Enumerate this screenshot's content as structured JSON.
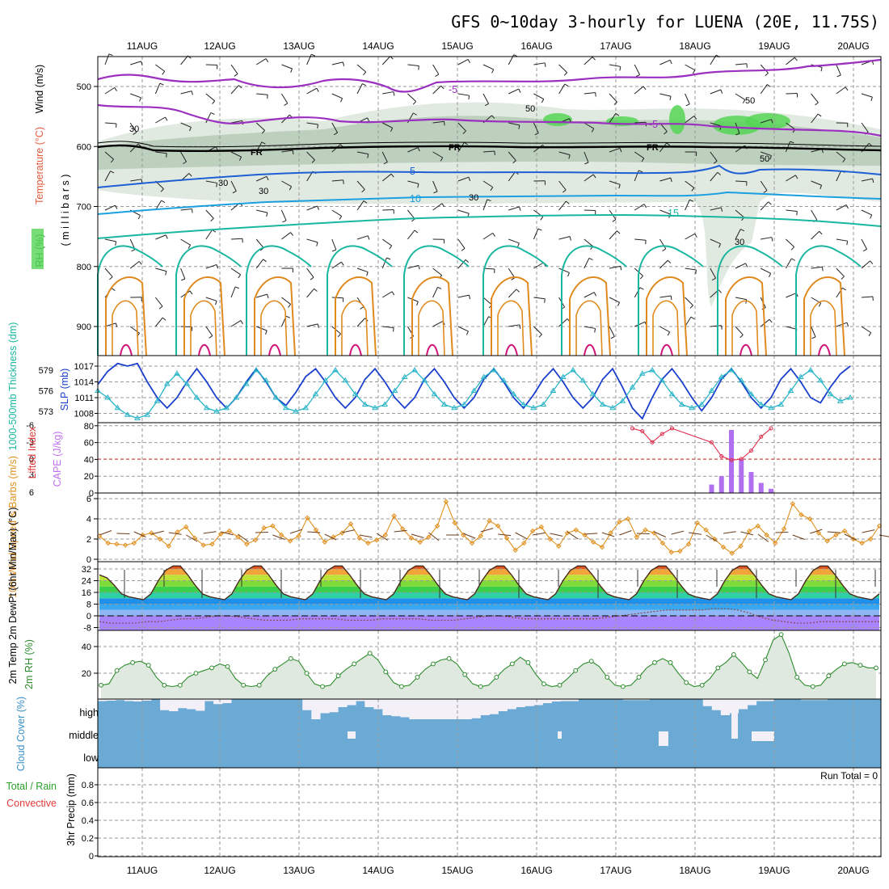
{
  "title": "GFS 0~10day 3-hourly for LUENA (20E, 11.75S)",
  "dates": [
    "11AUG",
    "12AUG",
    "13AUG",
    "14AUG",
    "15AUG",
    "16AUG",
    "17AUG",
    "18AUG",
    "19AUG",
    "20AUG"
  ],
  "run_total_label": "Run Total = 0",
  "colors": {
    "purple": "#9b2fbf",
    "blue": "#1f5fd6",
    "sky": "#1a9fe0",
    "teal": "#19b7a0",
    "orange": "#e08a1e",
    "magenta": "#d0157a",
    "green": "#55d655",
    "rh_fill": "#c9d8c9",
    "cloud": "#6aaad4",
    "cloud_clear": "#f4f0f8"
  },
  "chart_data": [
    {
      "type": "heatmap",
      "panel": "upper-air",
      "ylabel_parts": [
        "RH (%)",
        "Temperature (°C)",
        "Wind (m/s)"
      ],
      "ylabel_units": "( m i l l i b a r s )",
      "yticks": [
        500,
        600,
        700,
        800,
        900
      ],
      "contour_labels": {
        "temperature": [
          "-5",
          "-5",
          "5",
          "10",
          "15"
        ],
        "rh": [
          "50",
          "50",
          "30",
          "30",
          "30",
          "30",
          "30",
          "50"
        ],
        "freezing": [
          "FR",
          "FR",
          "FR"
        ]
      },
      "freezing_level_mb": 600,
      "temperature_isotherms_mb": [
        {
          "label": "-5",
          "mb": 555
        },
        {
          "label": "5",
          "mb": 640
        },
        {
          "label": "10",
          "mb": 680
        },
        {
          "label": "15",
          "mb": 720
        }
      ],
      "grid": true
    },
    {
      "type": "line",
      "panel": "thickness-slp",
      "ylabel_left": "1000-500mb Thickness (dm)",
      "ylabel_right": "SLP (mb)",
      "yticks_left": [
        573,
        576,
        579
      ],
      "yticks_right": [
        1008,
        1011,
        1014,
        1017
      ],
      "series": [
        {
          "name": "SLP (mb)",
          "values": [
            1013.5,
            1016,
            1017.5,
            1017,
            1017.5,
            1014,
            1011,
            1009,
            1011,
            1014,
            1016.5,
            1014,
            1011,
            1009,
            1011,
            1014,
            1016.5,
            1014,
            1011,
            1009.5,
            1012,
            1015,
            1016.5,
            1014,
            1011,
            1009,
            1011,
            1014.5,
            1016.5,
            1014,
            1011,
            1009,
            1011,
            1014.5,
            1016.5,
            1014,
            1011,
            1009,
            1011,
            1014.5,
            1016.5,
            1014,
            1011,
            1009,
            1011.5,
            1014.5,
            1016.5,
            1014,
            1011,
            1009,
            1011,
            1014.5,
            1016.5,
            1013,
            1009,
            1007,
            1011,
            1014.5,
            1016.5,
            1014,
            1011,
            1008.5,
            1011,
            1014.5,
            1016.5,
            1014,
            1011,
            1009,
            1011,
            1014.5,
            1016.5,
            1014,
            1011,
            1010,
            1013,
            1015.5,
            1017
          ]
        },
        {
          "name": "1000-500mb Thickness (dm)",
          "values": [
            576,
            575,
            573.5,
            572.5,
            572,
            572.5,
            574.5,
            577,
            578.5,
            577,
            575,
            573.5,
            573,
            573.5,
            575,
            577,
            579,
            577.5,
            575,
            573.5,
            573,
            573.5,
            575.5,
            577.5,
            579,
            577.5,
            575.5,
            574,
            573.5,
            574,
            576,
            578,
            579,
            577.5,
            575.5,
            574,
            573.5,
            574,
            576,
            578,
            579,
            577.5,
            575.5,
            574,
            573.5,
            574,
            576,
            578,
            579,
            577.5,
            575.5,
            574,
            573.5,
            574.5,
            576.5,
            578.5,
            579,
            577.5,
            575.5,
            574,
            573.5,
            574,
            576,
            578,
            579,
            577.5,
            575.5,
            574,
            573.5,
            574,
            576,
            578,
            579,
            577.5,
            575.5,
            574.5,
            575
          ]
        }
      ],
      "grid": true
    },
    {
      "type": "bar",
      "panel": "cape-li",
      "ylabel_left": "Lifted Index",
      "ylabel_right": "CAPE (J/kg)",
      "yticks_left": [
        "-6",
        "-3",
        "0",
        "3",
        "6"
      ],
      "yticks_right": [
        0,
        20,
        40,
        60,
        80
      ],
      "series": [
        {
          "name": "CAPE (J/kg)",
          "points": [
            [
              62,
              10
            ],
            [
              63,
              20
            ],
            [
              64,
              75
            ],
            [
              65,
              40
            ],
            [
              66,
              25
            ],
            [
              67,
              12
            ],
            [
              68,
              5
            ]
          ]
        },
        {
          "name": "Lifted Index",
          "points": [
            [
              54,
              5.5
            ],
            [
              55,
              5
            ],
            [
              56,
              3
            ],
            [
              57,
              4.5
            ],
            [
              58,
              5.5
            ],
            [
              62,
              3
            ],
            [
              63,
              0.5
            ],
            [
              64,
              -0.2
            ],
            [
              65,
              0
            ],
            [
              66,
              1.5
            ],
            [
              67,
              4
            ],
            [
              68,
              5.5
            ]
          ]
        }
      ],
      "grid": true
    },
    {
      "type": "line",
      "panel": "wind10m",
      "ylabel": "10m Wind Speed & Barbs (m/s)",
      "yticks": [
        0,
        2,
        4,
        6
      ],
      "series": [
        {
          "name": "10m Wind Speed",
          "values": [
            2.3,
            1.6,
            1.5,
            1.4,
            1.6,
            2.4,
            2.6,
            2.0,
            1.3,
            2.7,
            3.2,
            2.1,
            1.4,
            1.5,
            2.5,
            2.8,
            2.2,
            1.5,
            1.9,
            3.1,
            3.3,
            2.4,
            1.8,
            2.3,
            4.1,
            2.9,
            1.7,
            2.2,
            2.6,
            3.5,
            2.1,
            1.6,
            1.9,
            2.4,
            4.3,
            3.0,
            2.1,
            1.7,
            2.2,
            3.3,
            5.7,
            3.6,
            2.4,
            1.6,
            2.3,
            3.8,
            3.3,
            2.1,
            0.9,
            1.6,
            2.8,
            3.2,
            2.0,
            1.3,
            2.6,
            2.9,
            2.4,
            1.7,
            1.2,
            2.6,
            3.7,
            4.0,
            2.2,
            2.9,
            2.6,
            1.6,
            0.7,
            0.8,
            1.5,
            3.6,
            2.9,
            2.0,
            1.2,
            0.6,
            1.3,
            2.8,
            3.3,
            2.4,
            1.6,
            3.0,
            5.5,
            4.4,
            4.0,
            2.6,
            1.8,
            2.4,
            2.8,
            2.0,
            1.6,
            2.0,
            3.3
          ]
        }
      ],
      "grid": true
    },
    {
      "type": "area",
      "panel": "temperature",
      "ylabel": "2m Temp 2m DewPt (6hr Min/Max) (°C)",
      "yticks": [
        -8,
        0,
        8,
        16,
        24,
        32
      ],
      "series": [
        {
          "name": "2m Temp",
          "values": [
            28,
            26,
            21,
            15,
            13,
            12,
            11,
            15,
            24,
            31,
            34,
            34,
            28,
            21,
            15,
            13,
            12,
            11,
            15,
            24,
            31,
            34,
            34,
            28,
            21,
            15,
            13,
            12,
            11,
            15,
            24,
            31,
            34,
            34,
            28,
            21,
            15,
            13,
            12,
            11,
            15,
            24,
            31,
            34,
            34,
            28,
            21,
            15,
            13,
            12,
            11,
            15,
            24,
            31,
            34,
            34,
            28,
            21,
            15,
            13,
            12,
            11,
            15,
            24,
            31,
            34,
            34,
            28,
            21,
            15,
            13,
            12,
            11,
            15,
            24,
            31,
            34,
            34,
            28,
            21,
            15,
            13,
            12,
            11,
            15,
            24,
            31,
            34,
            34,
            28,
            21,
            15,
            13,
            12,
            11,
            15,
            24,
            31,
            34,
            34,
            28,
            21,
            15,
            13,
            12,
            11,
            15
          ]
        },
        {
          "name": "2m DewPt",
          "values": [
            -4,
            -5,
            -5,
            -5,
            -4,
            -4,
            -3,
            -2,
            -2,
            -1,
            0,
            0,
            -1,
            -2,
            -3,
            -3,
            -3,
            -2,
            -2,
            -2,
            -2,
            -3,
            -3,
            -3,
            -2,
            -2,
            -2,
            -2,
            -3,
            -3,
            -3,
            -2,
            -1,
            0,
            0,
            -1,
            -2,
            -2,
            -2,
            -2,
            -2,
            -2,
            -2,
            -1,
            0,
            1,
            2,
            3,
            4,
            4,
            4,
            4,
            5,
            5,
            4,
            2,
            -1,
            -3,
            -4,
            -5,
            -5,
            -4,
            -4,
            -4,
            -4,
            -4,
            -4
          ]
        }
      ],
      "grid": true
    },
    {
      "type": "area",
      "panel": "rh2m",
      "ylabel": "2m RH (%)",
      "yticks": [
        20,
        40
      ],
      "series": [
        {
          "name": "2m RH",
          "values": [
            11,
            12,
            22,
            26,
            28,
            29,
            26,
            17,
            11,
            10,
            11,
            17,
            20,
            22,
            24,
            27,
            25,
            16,
            11,
            10,
            11,
            18,
            23,
            27,
            31,
            29,
            20,
            12,
            10,
            11,
            18,
            23,
            27,
            31,
            35,
            30,
            21,
            13,
            10,
            11,
            17,
            23,
            27,
            30,
            31,
            27,
            19,
            12,
            10,
            11,
            17,
            23,
            27,
            32,
            28,
            19,
            12,
            10,
            11,
            16,
            22,
            27,
            29,
            25,
            17,
            11,
            10,
            11,
            17,
            24,
            28,
            31,
            28,
            20,
            13,
            10,
            11,
            16,
            24,
            28,
            34,
            28,
            21,
            16,
            30,
            45,
            49,
            35,
            17,
            11,
            10,
            11,
            18,
            23,
            27,
            28,
            26,
            24,
            24
          ]
        }
      ],
      "grid": true
    },
    {
      "type": "bar",
      "panel": "cloud-cover",
      "ylabel": "Cloud Cover (%)",
      "layers": [
        "high",
        "middle",
        "low"
      ],
      "series": [
        {
          "name": "high clear",
          "values": [
            10,
            8,
            5,
            10,
            12,
            8,
            0,
            55,
            60,
            45,
            50,
            58,
            10,
            25,
            20,
            0,
            0,
            0,
            0,
            0,
            0,
            0,
            0,
            55,
            100,
            70,
            65,
            40,
            30,
            10,
            40,
            50,
            80,
            85,
            90,
            100,
            100,
            100,
            100,
            100,
            100,
            100,
            95,
            80,
            75,
            60,
            50,
            40,
            35,
            30,
            20,
            12,
            10,
            10,
            0,
            0,
            0,
            0,
            0,
            5,
            5,
            5,
            0,
            0,
            0,
            0,
            0,
            0,
            35,
            55,
            80,
            70,
            50,
            30,
            10,
            10,
            0,
            0,
            0,
            5,
            5,
            5,
            0,
            0,
            0,
            0,
            0,
            0
          ]
        },
        {
          "name": "middle clear",
          "values": [
            0,
            0,
            0,
            0,
            0,
            0,
            0,
            0,
            0,
            0,
            0,
            0,
            0,
            0,
            0,
            0,
            0,
            0,
            0,
            0,
            0,
            0,
            0,
            0,
            0,
            0,
            0,
            0,
            0,
            0,
            0,
            0,
            0,
            0,
            0,
            0,
            0,
            0,
            0,
            0,
            0,
            0,
            0,
            0,
            0,
            0,
            0,
            0,
            0,
            0,
            0,
            0,
            0,
            0,
            0,
            0,
            0,
            0,
            0,
            0,
            0,
            0,
            0,
            0,
            0,
            0,
            0,
            0,
            0,
            0,
            0,
            0,
            0,
            0,
            0,
            0,
            0,
            0,
            0,
            0,
            0,
            0,
            0,
            0,
            0,
            0,
            0,
            0
          ]
        }
      ],
      "grid": true
    },
    {
      "type": "bar",
      "panel": "precip",
      "ylabel_parts": [
        "Total / Rain",
        "Convective",
        "3hr Precip (mm)"
      ],
      "yticks": [
        0,
        0.2,
        0.4,
        0.6,
        0.8
      ],
      "values": [],
      "grid": true
    }
  ]
}
